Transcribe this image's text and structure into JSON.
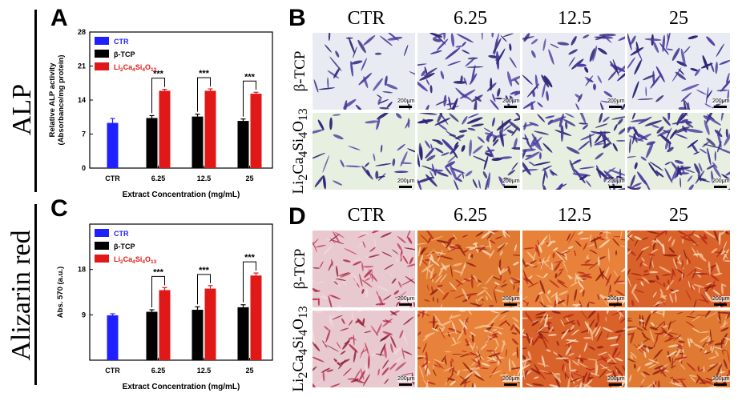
{
  "side_labels": {
    "top": "ALP",
    "bottom": "Alizarin red"
  },
  "panels": {
    "a": "A",
    "b": "B",
    "c": "C",
    "d": "D"
  },
  "columns": [
    "CTR",
    "6.25",
    "12.5",
    "25"
  ],
  "rows": {
    "row1": "β-TCP",
    "row2": "Li2Ca4Si4O13"
  },
  "scale_bar_label": "200μm",
  "significance": "***",
  "colors": {
    "ctr": "#2020ff",
    "btcp": "#000000",
    "lcs": "#e01818",
    "alp_stain": "#4a3aa0",
    "alp_bg": "#e8ecf2",
    "alizarin": "#c0301a"
  },
  "chart_data": [
    {
      "type": "bar",
      "panel": "A",
      "categories": [
        "CTR",
        "6.25",
        "12.5",
        "25"
      ],
      "ylabel": "Relative ALP activity (Absorbance/mg protein)",
      "xlabel": "Extract Concentration (mg/mL)",
      "ylim": [
        0,
        28
      ],
      "yticks": [
        0,
        7,
        14,
        21,
        28
      ],
      "legend_position": "top-left",
      "series": [
        {
          "name": "CTR",
          "color": "#2020ff",
          "values": [
            9.3,
            null,
            null,
            null
          ],
          "errors": [
            0.9,
            null,
            null,
            null
          ]
        },
        {
          "name": "β-TCP",
          "color": "#000000",
          "values": [
            null,
            10.3,
            10.6,
            9.7
          ],
          "errors": [
            null,
            0.5,
            0.5,
            0.4
          ]
        },
        {
          "name": "Li2Ca4Si4O13",
          "color": "#e01818",
          "values": [
            null,
            15.9,
            15.9,
            15.3
          ],
          "errors": [
            null,
            0.3,
            0.4,
            0.3
          ]
        }
      ],
      "annotations": [
        "***",
        "***",
        "***"
      ]
    },
    {
      "type": "bar",
      "panel": "C",
      "categories": [
        "CTR",
        "6.25",
        "12.5",
        "25"
      ],
      "ylabel": "Abs. 570 (a.u.)",
      "xlabel": "Extract Concentration (mg/mL)",
      "ylim": [
        0,
        27
      ],
      "yticks": [
        9,
        18
      ],
      "legend_position": "top-left",
      "series": [
        {
          "name": "CTR",
          "color": "#2020ff",
          "values": [
            8.9,
            null,
            null,
            null
          ],
          "errors": [
            0.3,
            null,
            null,
            null
          ]
        },
        {
          "name": "β-TCP",
          "color": "#000000",
          "values": [
            null,
            9.6,
            10.0,
            10.5
          ],
          "errors": [
            null,
            0.4,
            0.6,
            0.5
          ]
        },
        {
          "name": "Li2Ca4Si4O13",
          "color": "#e01818",
          "values": [
            null,
            13.9,
            14.2,
            16.8
          ],
          "errors": [
            null,
            0.5,
            0.6,
            0.5
          ]
        }
      ],
      "annotations": [
        "***",
        "***",
        "***"
      ]
    }
  ]
}
